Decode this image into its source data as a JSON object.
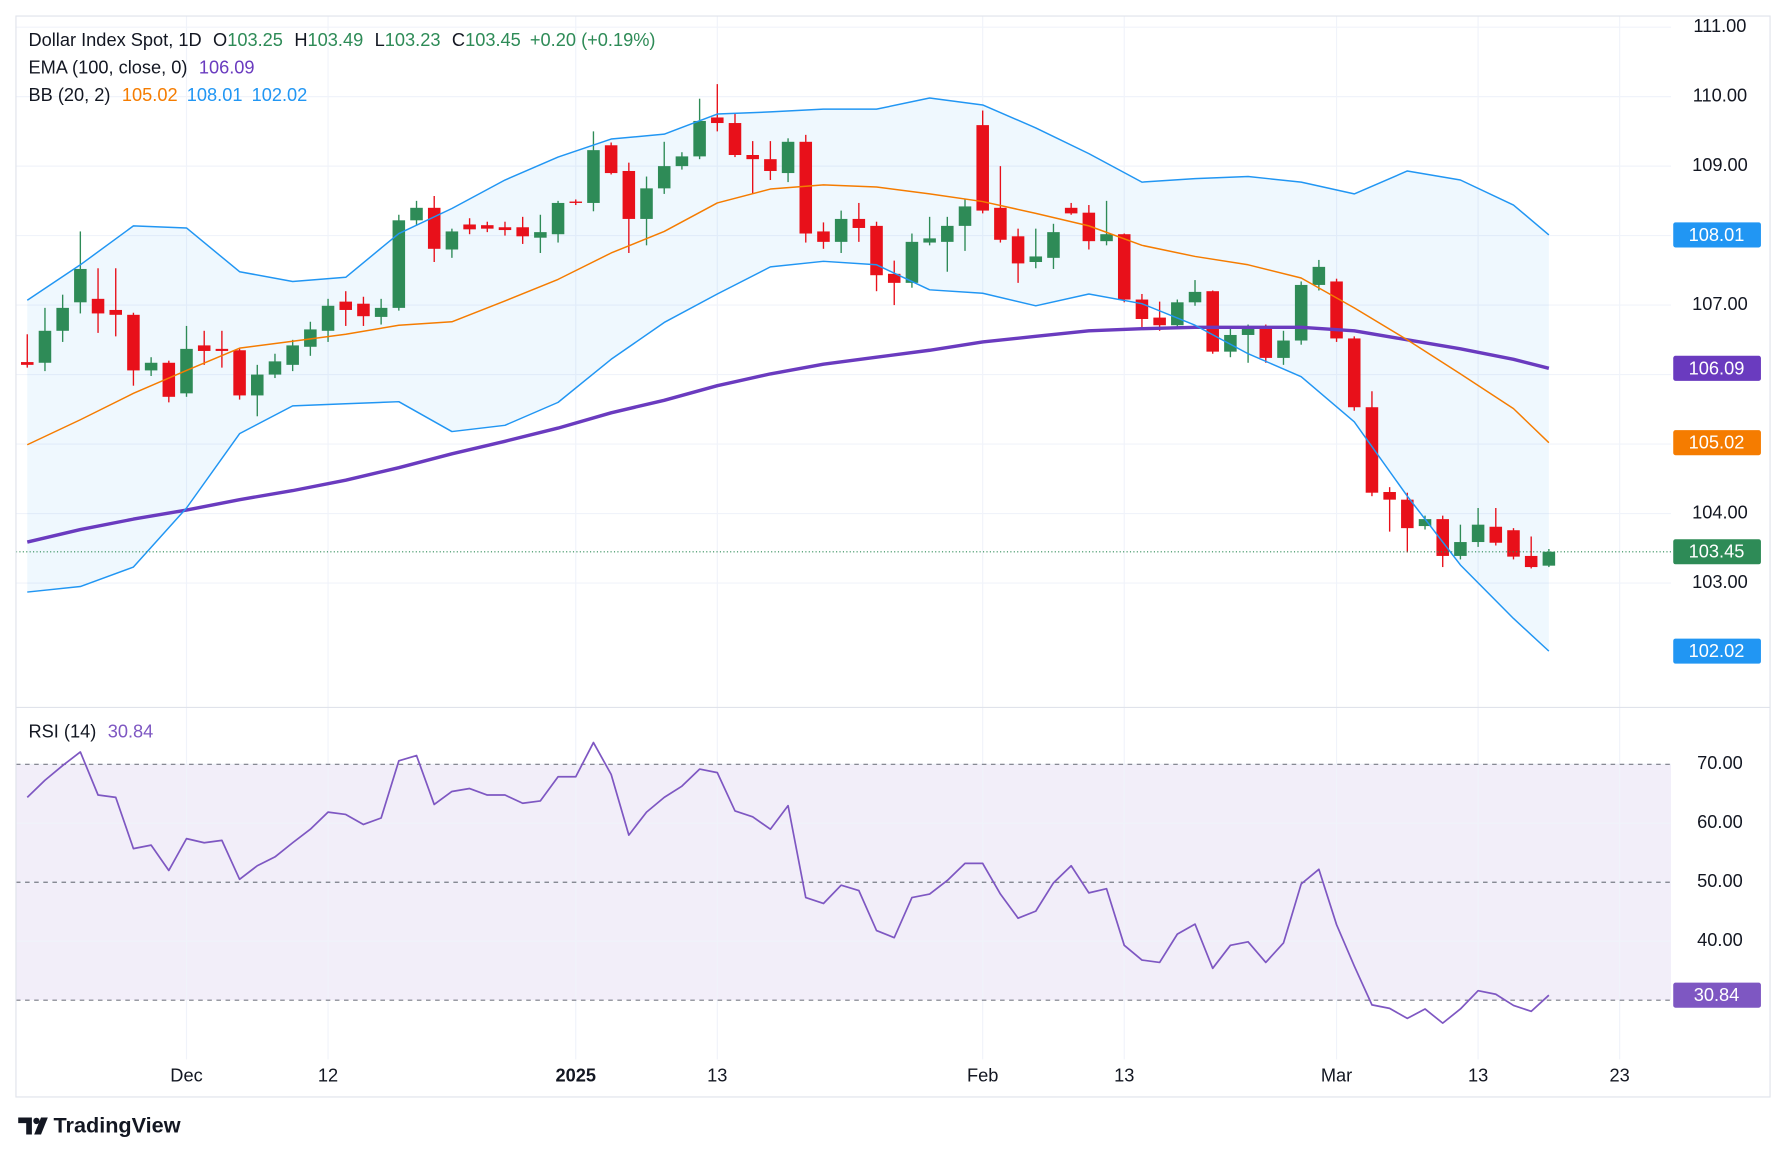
{
  "chart_data": [
    {
      "type": "candlestick",
      "title": "Dollar Index Spot, 1D",
      "ohlc_labels": [
        "O",
        "H",
        "L",
        "C"
      ],
      "change_label": "+0.20 (+0.19%)",
      "up_color": "#2e8b57",
      "down_color": "#e8101a",
      "open": [
        106.18,
        106.17,
        106.63,
        107.04,
        107.09,
        106.93,
        106.86,
        106.06,
        106.17,
        105.73,
        106.42,
        106.37,
        106.35,
        105.7,
        106.0,
        106.14,
        106.4,
        106.63,
        107.05,
        107.02,
        106.83,
        106.96,
        108.22,
        108.4,
        107.8,
        108.16,
        108.15,
        108.12,
        108.12,
        107.97,
        108.02,
        108.49,
        108.47,
        109.3,
        108.93,
        108.24,
        108.68,
        109.0,
        109.14,
        109.7,
        109.62,
        109.16,
        109.1,
        108.9,
        109.35,
        108.06,
        107.91,
        108.24,
        108.14,
        107.45,
        107.32,
        107.9,
        107.91,
        108.14,
        109.59,
        108.4,
        107.99,
        107.62,
        107.68,
        108.4,
        108.33,
        107.92,
        108.02,
        107.08,
        106.82,
        106.71,
        107.04,
        107.2,
        106.33,
        106.57,
        106.67,
        106.24,
        106.49,
        107.29,
        107.34,
        106.52,
        105.53,
        104.31,
        104.2,
        103.82,
        103.92,
        103.39,
        103.59,
        103.81,
        103.76,
        103.39,
        103.25
      ],
      "high": [
        106.58,
        106.96,
        107.15,
        108.06,
        107.53,
        107.53,
        106.89,
        106.25,
        106.2,
        106.7,
        106.63,
        106.63,
        106.37,
        106.14,
        106.3,
        106.5,
        106.76,
        107.09,
        107.2,
        107.12,
        107.09,
        108.3,
        108.5,
        108.57,
        108.1,
        108.25,
        108.2,
        108.2,
        108.27,
        108.3,
        108.5,
        108.52,
        109.5,
        109.34,
        109.05,
        108.85,
        109.35,
        109.2,
        109.97,
        110.18,
        109.75,
        109.36,
        109.36,
        109.4,
        109.45,
        108.19,
        108.36,
        108.47,
        108.2,
        107.64,
        108.03,
        108.27,
        108.27,
        108.52,
        109.8,
        109.0,
        108.1,
        108.1,
        108.17,
        108.47,
        108.44,
        108.5,
        108.03,
        107.16,
        107.05,
        107.08,
        107.36,
        107.21,
        106.67,
        106.72,
        106.72,
        106.63,
        107.34,
        107.65,
        107.38,
        106.55,
        105.76,
        104.38,
        104.3,
        103.97,
        103.97,
        103.84,
        104.08,
        104.08,
        103.79,
        103.67,
        103.49
      ],
      "low": [
        106.1,
        106.05,
        106.47,
        106.88,
        106.6,
        106.55,
        105.84,
        105.98,
        105.6,
        105.68,
        106.14,
        106.1,
        105.64,
        105.4,
        105.95,
        106.05,
        106.27,
        106.47,
        106.7,
        106.7,
        106.72,
        106.92,
        108.15,
        107.62,
        107.68,
        108.02,
        108.05,
        108.0,
        107.88,
        107.75,
        107.9,
        108.44,
        108.35,
        108.88,
        107.75,
        107.86,
        108.6,
        108.95,
        109.1,
        109.5,
        109.13,
        108.6,
        108.8,
        108.77,
        107.9,
        107.81,
        107.75,
        107.91,
        107.2,
        107.0,
        107.25,
        107.86,
        107.48,
        107.78,
        108.32,
        107.9,
        107.32,
        107.53,
        107.52,
        108.3,
        107.8,
        107.86,
        107.04,
        106.66,
        106.63,
        106.66,
        106.99,
        106.3,
        106.25,
        106.17,
        106.17,
        106.14,
        106.43,
        107.21,
        106.47,
        105.48,
        104.25,
        103.74,
        103.44,
        103.77,
        103.23,
        103.34,
        103.52,
        103.54,
        103.34,
        103.21,
        103.23
      ],
      "close": [
        106.14,
        106.63,
        106.96,
        107.52,
        106.88,
        106.86,
        106.06,
        106.17,
        105.68,
        106.37,
        106.34,
        106.34,
        105.7,
        106.0,
        106.19,
        106.42,
        106.65,
        106.99,
        106.93,
        106.84,
        106.96,
        108.22,
        108.4,
        107.81,
        108.06,
        108.09,
        108.1,
        108.08,
        107.99,
        108.05,
        108.47,
        108.47,
        109.23,
        108.9,
        108.24,
        108.68,
        109.0,
        109.14,
        109.65,
        109.62,
        109.16,
        109.1,
        108.93,
        109.35,
        108.03,
        107.91,
        108.24,
        108.11,
        107.43,
        107.32,
        107.91,
        107.96,
        108.14,
        108.42,
        108.36,
        107.94,
        107.6,
        107.7,
        108.05,
        108.32,
        107.92,
        108.02,
        107.08,
        106.8,
        106.71,
        107.04,
        107.19,
        106.33,
        106.57,
        106.67,
        106.24,
        106.49,
        107.29,
        107.55,
        106.52,
        105.53,
        104.3,
        104.2,
        103.79,
        103.92,
        103.39,
        103.59,
        103.84,
        103.58,
        103.38,
        103.23,
        103.45
      ],
      "indicator_x": [
        0,
        3,
        6,
        9,
        12,
        15,
        18,
        21,
        24,
        27,
        30,
        33,
        36,
        39,
        42,
        45,
        48,
        51,
        54,
        57,
        60,
        63,
        66,
        69,
        72,
        75,
        78,
        81,
        84,
        86
      ],
      "indicators": [
        {
          "name": "EMA (100, close, 0)",
          "width": 3,
          "lines": [
            {
              "color": "#6a3bbf",
              "values": [
                103.59,
                103.77,
                103.92,
                104.05,
                104.2,
                104.33,
                104.48,
                104.66,
                104.86,
                105.04,
                105.23,
                105.45,
                105.63,
                105.84,
                106.01,
                106.15,
                106.25,
                106.35,
                106.47,
                106.55,
                106.63,
                106.66,
                106.68,
                106.68,
                106.68,
                106.63,
                106.5,
                106.37,
                106.22,
                106.09
              ]
            }
          ]
        },
        {
          "name": "BB (20, 2)",
          "width": 1.3,
          "fill": "rgba(33,150,243,0.07)",
          "fill_between": [
            1,
            2
          ],
          "lines": [
            {
              "color": "#f57c00",
              "values": [
                104.99,
                105.35,
                105.73,
                106.06,
                106.38,
                106.48,
                106.58,
                106.71,
                106.76,
                107.06,
                107.37,
                107.75,
                108.06,
                108.47,
                108.67,
                108.73,
                108.7,
                108.6,
                108.49,
                108.32,
                108.14,
                107.86,
                107.7,
                107.58,
                107.39,
                106.96,
                106.5,
                106.01,
                105.51,
                105.02
              ]
            },
            {
              "color": "#2196f3",
              "values": [
                107.07,
                107.58,
                108.14,
                108.11,
                107.48,
                107.34,
                107.4,
                108.03,
                108.39,
                108.8,
                109.13,
                109.39,
                109.46,
                109.75,
                109.78,
                109.82,
                109.82,
                109.98,
                109.88,
                109.55,
                109.18,
                108.77,
                108.82,
                108.85,
                108.77,
                108.6,
                108.93,
                108.8,
                108.44,
                108.01
              ]
            },
            {
              "color": "#2196f3",
              "values": [
                102.87,
                102.95,
                103.23,
                104.08,
                105.15,
                105.55,
                105.58,
                105.61,
                105.18,
                105.27,
                105.6,
                106.22,
                106.75,
                107.16,
                107.55,
                107.63,
                107.58,
                107.22,
                107.17,
                106.99,
                107.16,
                107.02,
                106.71,
                106.3,
                105.97,
                105.32,
                104.25,
                103.26,
                102.49,
                102.02
              ]
            }
          ]
        }
      ],
      "xlim": [
        -0.64,
        92.9
      ],
      "ylim": [
        101.21,
        111.16
      ],
      "yticks": [
        {
          "value": 103,
          "label": "103.00"
        },
        {
          "value": 104,
          "label": "104.00"
        },
        {
          "value": 105,
          "label": "105.00"
        },
        {
          "value": 106,
          "label": "106.00"
        },
        {
          "value": 107,
          "label": "107.00"
        },
        {
          "value": 108,
          "label": "108.00"
        },
        {
          "value": 109,
          "label": "109.00"
        },
        {
          "value": 110,
          "label": "110.00"
        },
        {
          "value": 111,
          "label": "111.00"
        }
      ],
      "grid": true
    },
    {
      "type": "line",
      "name": "RSI (14)",
      "color": "#7e57c2",
      "band_fill": "rgba(126,87,194,0.1)",
      "values": [
        64.4,
        67.3,
        69.8,
        72.1,
        64.8,
        64.4,
        55.7,
        56.3,
        52.0,
        57.4,
        56.7,
        57.1,
        50.5,
        52.8,
        54.3,
        56.7,
        59.0,
        61.9,
        61.5,
        59.8,
        60.9,
        70.6,
        71.5,
        63.2,
        65.4,
        65.9,
        64.8,
        64.8,
        63.4,
        63.8,
        67.9,
        67.9,
        73.7,
        68.3,
        58.0,
        61.9,
        64.4,
        66.3,
        69.2,
        68.6,
        62.1,
        61.1,
        59.0,
        63.0,
        47.4,
        46.4,
        49.5,
        48.6,
        41.8,
        40.6,
        47.4,
        48.0,
        50.3,
        53.2,
        53.2,
        48.0,
        43.9,
        45.1,
        49.9,
        52.8,
        48.2,
        48.9,
        39.3,
        36.8,
        36.4,
        41.2,
        42.9,
        35.4,
        39.3,
        39.9,
        36.4,
        39.7,
        49.7,
        52.2,
        42.8,
        35.8,
        29.2,
        28.6,
        26.9,
        28.5,
        26.1,
        28.5,
        31.6,
        31.0,
        29.1,
        28.1,
        30.84
      ],
      "levels": [
        30,
        50,
        70
      ],
      "xlim": [
        -0.64,
        92.9
      ],
      "ylim": [
        19.95,
        79.66
      ],
      "yticks": [
        {
          "value": 40,
          "label": "40.00"
        },
        {
          "value": 50,
          "label": "50.00"
        },
        {
          "value": 60,
          "label": "60.00"
        },
        {
          "value": 70,
          "label": "70.00"
        }
      ],
      "xticks": [
        {
          "value": 9,
          "label": "Dec"
        },
        {
          "value": 17,
          "label": "12"
        },
        {
          "value": 31,
          "label": "2025",
          "bold": true
        },
        {
          "value": 39,
          "label": "13"
        },
        {
          "value": 54,
          "label": "Feb"
        },
        {
          "value": 62,
          "label": "13"
        },
        {
          "value": 74,
          "label": "Mar"
        },
        {
          "value": 82,
          "label": "13"
        },
        {
          "value": 90,
          "label": "23"
        }
      ],
      "grid": true
    }
  ],
  "brand": "TradingView"
}
